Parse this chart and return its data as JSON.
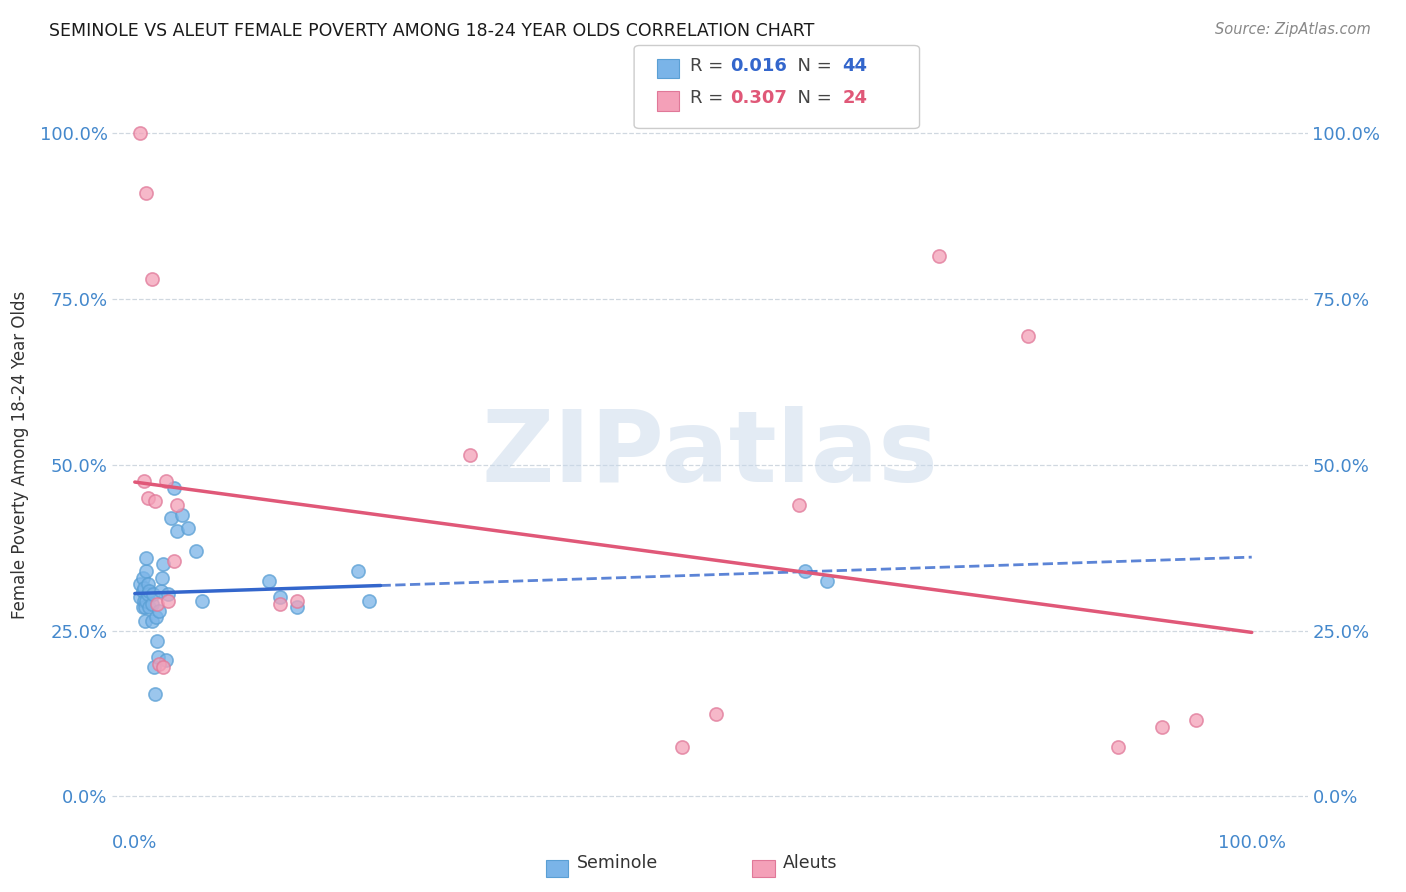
{
  "title": "SEMINOLE VS ALEUT FEMALE POVERTY AMONG 18-24 YEAR OLDS CORRELATION CHART",
  "source": "Source: ZipAtlas.com",
  "ylabel": "Female Poverty Among 18-24 Year Olds",
  "ytick_labels": [
    "0.0%",
    "25.0%",
    "50.0%",
    "75.0%",
    "100.0%"
  ],
  "ytick_values": [
    0.0,
    0.25,
    0.5,
    0.75,
    1.0
  ],
  "xtick_labels": [
    "0.0%",
    "100.0%"
  ],
  "xtick_values": [
    0.0,
    1.0
  ],
  "xlim": [
    -0.02,
    1.05
  ],
  "ylim": [
    -0.05,
    1.08
  ],
  "seminole_R": "0.016",
  "seminole_N": "44",
  "aleut_R": "0.307",
  "aleut_N": "24",
  "seminole_color": "#7ab4e8",
  "seminole_edge": "#5a9fd4",
  "aleut_color": "#f4a0b8",
  "aleut_edge": "#e07898",
  "seminole_line_color": "#3366cc",
  "aleut_line_color": "#e05878",
  "background_color": "#ffffff",
  "grid_color": "#d0d8e0",
  "watermark": "ZIPatlas",
  "watermark_color": "#c8d8ea",
  "seminole_x": [
    0.005,
    0.005,
    0.007,
    0.007,
    0.007,
    0.008,
    0.008,
    0.009,
    0.009,
    0.01,
    0.01,
    0.01,
    0.012,
    0.012,
    0.013,
    0.013,
    0.015,
    0.015,
    0.016,
    0.017,
    0.018,
    0.019,
    0.02,
    0.021,
    0.022,
    0.023,
    0.024,
    0.025,
    0.028,
    0.03,
    0.032,
    0.035,
    0.038,
    0.042,
    0.048,
    0.055,
    0.06,
    0.12,
    0.13,
    0.145,
    0.2,
    0.21,
    0.6,
    0.62
  ],
  "seminole_y": [
    0.3,
    0.32,
    0.285,
    0.31,
    0.33,
    0.295,
    0.315,
    0.285,
    0.265,
    0.34,
    0.36,
    0.295,
    0.32,
    0.305,
    0.285,
    0.31,
    0.29,
    0.265,
    0.305,
    0.195,
    0.155,
    0.27,
    0.235,
    0.21,
    0.28,
    0.31,
    0.33,
    0.35,
    0.205,
    0.305,
    0.42,
    0.465,
    0.4,
    0.425,
    0.405,
    0.37,
    0.295,
    0.325,
    0.3,
    0.285,
    0.34,
    0.295,
    0.34,
    0.325
  ],
  "aleut_x": [
    0.005,
    0.008,
    0.01,
    0.012,
    0.015,
    0.018,
    0.02,
    0.022,
    0.025,
    0.028,
    0.03,
    0.035,
    0.038,
    0.13,
    0.145,
    0.3,
    0.49,
    0.52,
    0.595,
    0.72,
    0.8,
    0.88,
    0.92,
    0.95
  ],
  "aleut_y": [
    1.0,
    0.475,
    0.91,
    0.45,
    0.78,
    0.445,
    0.29,
    0.2,
    0.195,
    0.475,
    0.295,
    0.355,
    0.44,
    0.29,
    0.295,
    0.515,
    0.075,
    0.125,
    0.44,
    0.815,
    0.695,
    0.075,
    0.105,
    0.115
  ]
}
